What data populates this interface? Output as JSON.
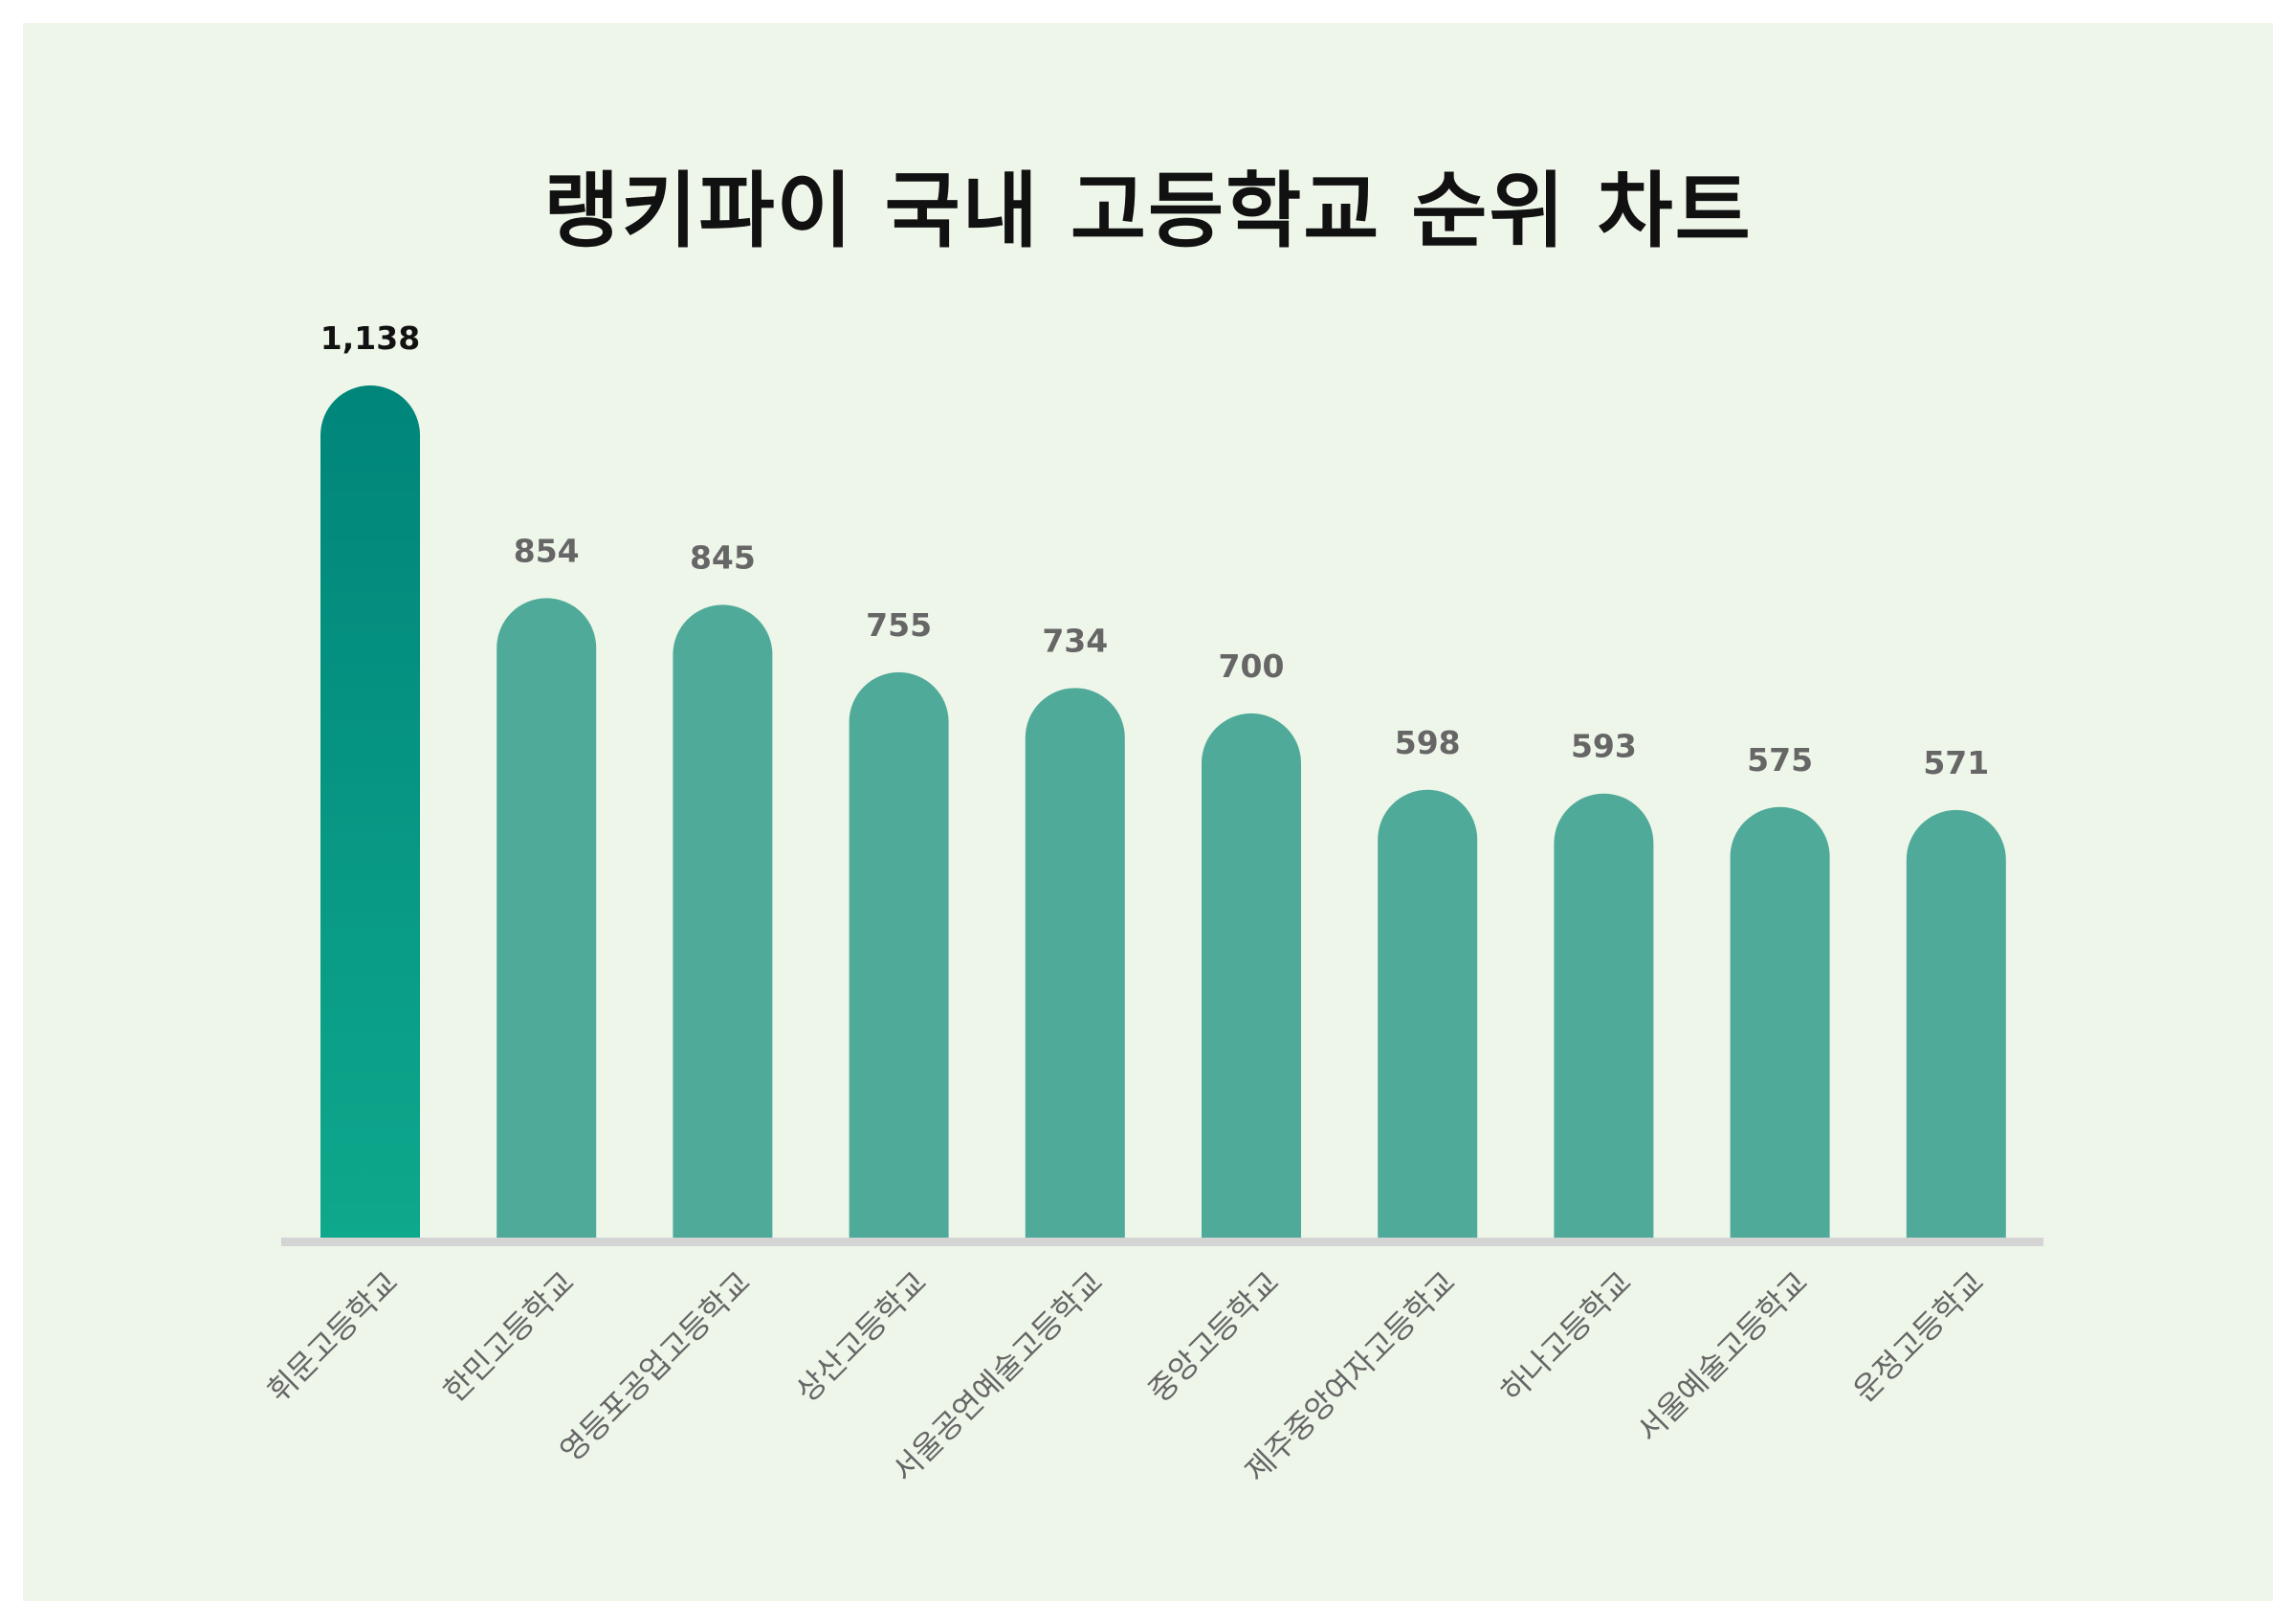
{
  "title": "랭키파이 국내 고등학교 순위 차트",
  "colors": {
    "background": "#eef6e9",
    "bar": "#50aa9a",
    "highlight_bar_top": "#00857a",
    "highlight_bar_bottom": "#0ea88c",
    "baseline": "#d4d4d4",
    "highlight_label": "#111111",
    "value_label": "#666666",
    "category_label": "#666666"
  },
  "chart_data": {
    "type": "bar",
    "title": "랭키파이 국내 고등학교 순위 차트",
    "categories": [
      "휘문고등학교",
      "한민고등학교",
      "영등포공업고등학교",
      "상산고등학교",
      "서울공연예술고등학교",
      "중앙고등학교",
      "제주중앙여자고등학교",
      "하나고등학교",
      "서울예술고등학교",
      "운정고등학교"
    ],
    "values": [
      1138,
      854,
      845,
      755,
      734,
      700,
      598,
      593,
      575,
      571
    ],
    "value_labels": [
      "1,138",
      "854",
      "845",
      "755",
      "734",
      "700",
      "598",
      "593",
      "575",
      "571"
    ],
    "xlabel": "",
    "ylabel": "",
    "ylim": [
      0,
      1138
    ],
    "grid": false,
    "legend": "none",
    "highlight_index": 0
  }
}
